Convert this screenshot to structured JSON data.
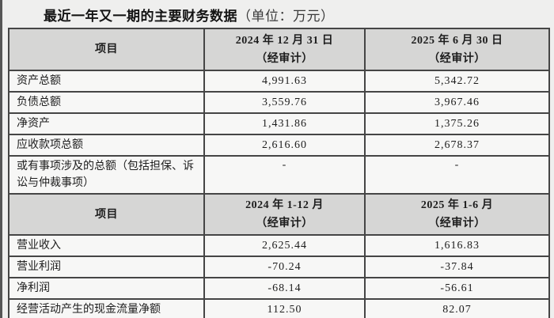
{
  "colors": {
    "page_bg": "#efefee",
    "header_bg": "#d6d6d5",
    "cell_bg": "#f7f7f6",
    "border": "#454545",
    "text": "#1d1d1d"
  },
  "title": {
    "text": "最近一年又一期的主要财务数据",
    "unit": "（单位：万元）"
  },
  "balance_section": {
    "header": {
      "item": "项目",
      "period1_line1": "2024 年 12 月 31 日",
      "period1_line2": "（经审计）",
      "period2_line1": "2025 年 6 月 30 日",
      "period2_line2": "（经审计）"
    },
    "rows": [
      {
        "label": "资产总额",
        "v2024": "4,991.63",
        "v2025": "5,342.72"
      },
      {
        "label": "负债总额",
        "v2024": "3,559.76",
        "v2025": "3,967.46"
      },
      {
        "label": "净资产",
        "v2024": "1,431.86",
        "v2025": "1,375.26"
      },
      {
        "label": "应收款项总额",
        "v2024": "2,616.60",
        "v2025": "2,678.37"
      },
      {
        "label": "或有事项涉及的总额（包括担保、诉讼与仲裁事项）",
        "v2024": "-",
        "v2025": "-"
      }
    ]
  },
  "income_section": {
    "header": {
      "item": "项目",
      "period1_line1": "2024 年 1-12 月",
      "period1_line2": "（经审计）",
      "period2_line1": "2025 年 1-6 月",
      "period2_line2": "（经审计）"
    },
    "rows": [
      {
        "label": "营业收入",
        "v2024": "2,625.44",
        "v2025": "1,616.83"
      },
      {
        "label": "营业利润",
        "v2024": "-70.24",
        "v2025": "-37.84"
      },
      {
        "label": "净利润",
        "v2024": "-68.14",
        "v2025": "-56.61"
      },
      {
        "label": "经营活动产生的现金流量净额",
        "v2024": "112.50",
        "v2025": "82.07"
      }
    ]
  }
}
